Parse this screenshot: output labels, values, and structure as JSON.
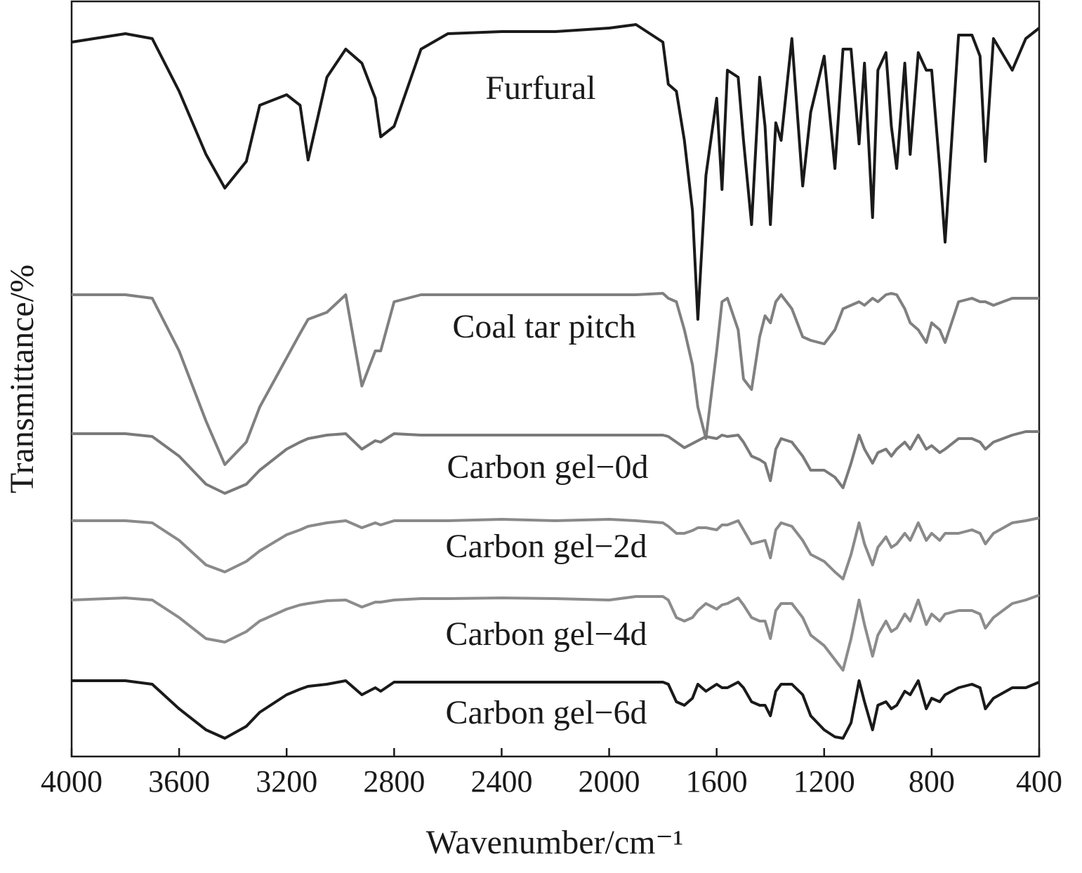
{
  "chart_data": {
    "type": "line",
    "x_label": "Wavenumber/cm⁻¹",
    "y_label": "Transmittance/%",
    "xlim": [
      4000,
      400
    ],
    "xticks": [
      4000,
      3600,
      3200,
      2800,
      2400,
      2000,
      1600,
      1200,
      800,
      400
    ],
    "ylim": [
      0,
      108
    ],
    "x": [
      4000,
      3800,
      3700,
      3600,
      3500,
      3430,
      3350,
      3300,
      3200,
      3150,
      3120,
      3050,
      2980,
      2920,
      2870,
      2850,
      2800,
      2700,
      2600,
      2400,
      2200,
      2000,
      1900,
      1800,
      1780,
      1750,
      1720,
      1690,
      1670,
      1640,
      1600,
      1580,
      1560,
      1520,
      1500,
      1470,
      1440,
      1420,
      1400,
      1380,
      1360,
      1320,
      1280,
      1250,
      1200,
      1160,
      1130,
      1100,
      1070,
      1050,
      1020,
      1000,
      970,
      950,
      930,
      900,
      880,
      850,
      820,
      800,
      770,
      750,
      700,
      650,
      620,
      600,
      570,
      500,
      450,
      400
    ],
    "series": [
      {
        "name": "Furfural",
        "color": "#1a1a1a",
        "values": [
          102,
          103.2,
          102.5,
          95,
          86,
          81.2,
          85,
          93,
          94.5,
          93,
          85.2,
          97,
          101,
          99,
          94,
          88.5,
          90,
          101,
          103.2,
          103.5,
          103.5,
          104,
          104.5,
          102,
          96,
          95,
          88,
          78,
          62.5,
          83,
          94,
          81,
          98,
          97,
          88,
          76,
          97,
          90,
          76,
          90.5,
          88,
          102.5,
          81.5,
          92,
          100,
          84,
          101,
          101,
          87.5,
          99,
          77,
          98,
          100.5,
          90,
          84,
          99,
          86,
          100.5,
          98,
          98,
          84,
          73.5,
          103,
          103,
          100,
          85,
          102.5,
          98,
          102.5,
          104
        ]
      },
      {
        "name": "Coal tar pitch",
        "color": "#808080",
        "values": [
          66,
          66,
          65.5,
          58,
          48,
          41.8,
          45,
          50,
          57,
          60.5,
          62.5,
          63.5,
          66,
          53,
          58,
          58,
          65,
          66,
          66,
          66,
          66,
          66,
          66,
          66.2,
          65.5,
          65,
          61,
          56,
          50,
          45.5,
          58,
          65,
          65.5,
          61,
          54,
          52.5,
          60,
          63,
          62,
          65,
          66,
          64,
          60,
          59.5,
          59,
          61,
          64,
          64.5,
          65,
          64.5,
          65.5,
          65,
          66,
          66.2,
          66,
          64,
          62,
          61,
          59.2,
          62,
          61,
          59.2,
          65,
          65.5,
          65,
          65,
          64.5,
          65.5,
          65.5,
          65.5
        ]
      },
      {
        "name": "Carbon gel−0d",
        "color": "#7a7a7a",
        "values": [
          46.2,
          46.2,
          45.8,
          43,
          39,
          37.7,
          39,
          41,
          44,
          45,
          45.5,
          46,
          46.2,
          44,
          45.2,
          45,
          46.2,
          46,
          46,
          46,
          46,
          46,
          46,
          46,
          45.8,
          45,
          44.2,
          44.8,
          45.2,
          45.8,
          45.5,
          46,
          45.8,
          46,
          45,
          43,
          42.5,
          42,
          39.5,
          44,
          45.5,
          45,
          43,
          41,
          41,
          40,
          38.5,
          42,
          46,
          44,
          42,
          43.5,
          44,
          43,
          44,
          45,
          44,
          46,
          44,
          44.5,
          43.5,
          44,
          45.5,
          45.5,
          45,
          44,
          45,
          46,
          46.5,
          46.5
        ]
      },
      {
        "name": "Carbon gel−2d",
        "color": "#8a8a8a",
        "values": [
          33.8,
          33.8,
          33.5,
          31,
          27.5,
          26.5,
          28,
          29.5,
          31.8,
          32.5,
          33,
          33.5,
          33.8,
          32.8,
          33.5,
          33.2,
          33.8,
          33.8,
          33.8,
          34,
          33.8,
          34,
          33.8,
          33.5,
          33,
          32,
          32,
          32.4,
          32.8,
          32.8,
          32.5,
          33.2,
          33.2,
          33.8,
          32.5,
          30.5,
          30.8,
          31,
          28.5,
          32.5,
          33.5,
          33,
          31,
          29,
          28,
          26.5,
          25.5,
          29,
          33.5,
          30.5,
          27.5,
          30,
          31.5,
          30,
          30.5,
          32,
          31,
          33.5,
          31,
          32,
          31,
          32,
          32,
          32.5,
          32,
          30.5,
          32,
          33.5,
          33.8,
          34.2
        ]
      },
      {
        "name": "Carbon gel−4d",
        "color": "#8c8c8c",
        "values": [
          22.5,
          22.8,
          22.5,
          20,
          17,
          16.5,
          18,
          19.5,
          21.2,
          21.8,
          22,
          22.4,
          22.5,
          21.5,
          22.2,
          22.2,
          22.5,
          22.7,
          22.7,
          22.8,
          22.7,
          22.5,
          23,
          23,
          22.5,
          20,
          19.5,
          20,
          21,
          22,
          21.2,
          21.8,
          22,
          22.8,
          21.8,
          20,
          19.5,
          19.5,
          17,
          21,
          22,
          22,
          20,
          17.5,
          16,
          14,
          12.5,
          17,
          22.5,
          19,
          14.5,
          17.5,
          19.5,
          18,
          18.5,
          20.5,
          19.5,
          22.5,
          19,
          20.5,
          19.5,
          20.5,
          21,
          21,
          20.5,
          18.5,
          20,
          22,
          22.5,
          23.2
        ]
      },
      {
        "name": "Carbon gel−6d",
        "color": "#1a1a1a",
        "values": [
          11,
          11,
          10.5,
          7,
          4,
          2.8,
          4.5,
          6.5,
          9,
          9.8,
          10.2,
          10.5,
          11,
          9,
          10,
          9.5,
          10.8,
          10.8,
          10.8,
          10.8,
          10.8,
          10.8,
          10.8,
          10.8,
          10.5,
          8,
          7.5,
          8.5,
          10.5,
          9.5,
          10.5,
          10,
          10,
          10.8,
          10,
          8,
          7.5,
          7.5,
          6,
          9.5,
          10.5,
          10.5,
          9,
          6,
          4,
          3,
          2.8,
          5,
          11,
          8,
          4,
          7.5,
          8,
          7,
          7.5,
          9.5,
          9,
          11,
          7,
          8.5,
          8,
          9,
          10,
          10.5,
          10,
          7,
          8.5,
          10,
          10,
          10.8
        ]
      }
    ]
  }
}
